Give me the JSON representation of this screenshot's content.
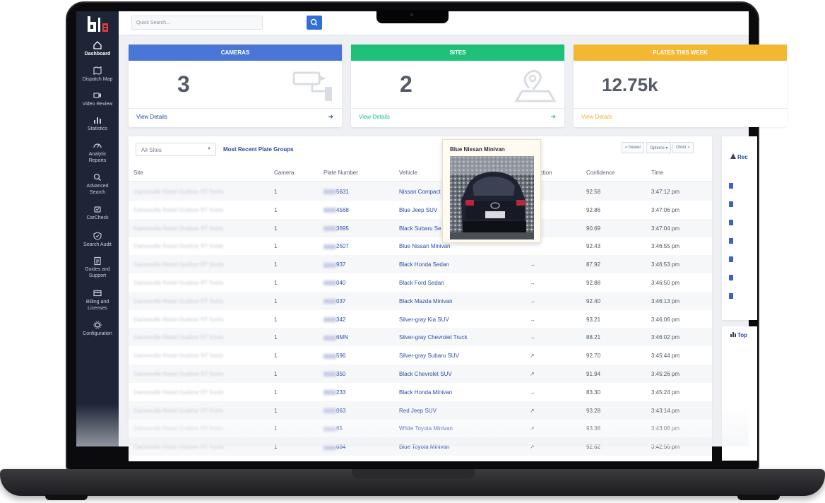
{
  "search": {
    "placeholder": "Quick Search..."
  },
  "sidebar": {
    "items": [
      {
        "label": "Dashboard",
        "icon": "home-icon"
      },
      {
        "label": "Dispatch Map",
        "icon": "map-icon"
      },
      {
        "label": "Video Review",
        "icon": "video-icon"
      },
      {
        "label": "Statistics",
        "icon": "bar-chart-icon"
      },
      {
        "label": "Analytic Reports",
        "icon": "gauge-icon"
      },
      {
        "label": "Advanced Search",
        "icon": "search-icon"
      },
      {
        "label": "CarCheck",
        "icon": "car-check-icon"
      },
      {
        "label": "Search Audit",
        "icon": "shield-check-icon"
      },
      {
        "label": "Guides and Support",
        "icon": "clipboard-icon"
      },
      {
        "label": "Billing and Licenses",
        "icon": "card-icon"
      },
      {
        "label": "Configuration",
        "icon": "gear-icon"
      }
    ]
  },
  "cards": [
    {
      "title": "CAMERAS",
      "value": "3",
      "link": "View Details",
      "color": "#4a76d8"
    },
    {
      "title": "SITES",
      "value": "2",
      "link": "View Details",
      "color": "#1fc07a"
    },
    {
      "title": "PLATES THIS WEEK",
      "value": "12.75k",
      "link": "View Details",
      "color": "#f4b731"
    }
  ],
  "table": {
    "filter": "All Sites",
    "group_link": "Most Recent Plate Groups",
    "pager": {
      "newer": "« Newer",
      "options": "Options ▾",
      "older": "Older »"
    },
    "headers": [
      "Site",
      "Camera",
      "Plate Number",
      "Vehicle",
      "Direction",
      "Confidence",
      "Time"
    ],
    "rows": [
      {
        "site": "Gainesville Retail Outdoor RT fronts",
        "camera": "1",
        "plate": "5631",
        "vehicle": "Nissan Compact",
        "dir": "",
        "confidence": "92.58",
        "time": "3:47:12 pm"
      },
      {
        "site": "Gainesville Retail Outdoor RT fronts",
        "camera": "1",
        "plate": "4568",
        "vehicle": "Blue Jeep SUV",
        "dir": "",
        "confidence": "92.86",
        "time": "3:47:06 pm"
      },
      {
        "site": "Gainesville Retail Outdoor RT fronts",
        "camera": "1",
        "plate": "3695",
        "vehicle": "Black Subaru Se",
        "dir": "",
        "confidence": "90.69",
        "time": "3:47:04 pm"
      },
      {
        "site": "Gainesville Retail Outdoor RT fronts",
        "camera": "1",
        "plate": "2507",
        "vehicle": "Blue Nissan Minivan",
        "dir": "",
        "confidence": "92.43",
        "time": "3:46:55 pm"
      },
      {
        "site": "Gainesville Retail Outdoor RT fronts",
        "camera": "1",
        "plate": "937",
        "vehicle": "Black Honda Sedan",
        "dir": "→",
        "confidence": "87.92",
        "time": "3:46:53 pm"
      },
      {
        "site": "Gainesville Retail Outdoor RT fronts",
        "camera": "1",
        "plate": "040",
        "vehicle": "Black Ford Sedan",
        "dir": "→",
        "confidence": "92.88",
        "time": "3:46:50 pm"
      },
      {
        "site": "Gainesville Retail Outdoor RT fronts",
        "camera": "1",
        "plate": "037",
        "vehicle": "Black Mazda Minivan",
        "dir": "→",
        "confidence": "92.40",
        "time": "3:46:13 pm"
      },
      {
        "site": "Gainesville Retail Outdoor RT fronts",
        "camera": "1",
        "plate": "342",
        "vehicle": "Silver-gray Kia SUV",
        "dir": "→",
        "confidence": "93.21",
        "time": "3:46:06 pm"
      },
      {
        "site": "Gainesville Retail Outdoor RT fronts",
        "camera": "1",
        "plate": "6MN",
        "vehicle": "Silver-gray Chevrolet Truck",
        "dir": "→",
        "confidence": "88.21",
        "time": "3:46:02 pm"
      },
      {
        "site": "Gainesville Retail Outdoor RT fronts",
        "camera": "1",
        "plate": "596",
        "vehicle": "Silver-gray Subaru SUV",
        "dir": "↗",
        "confidence": "92.70",
        "time": "3:45:44 pm"
      },
      {
        "site": "Gainesville Retail Outdoor RT fronts",
        "camera": "1",
        "plate": "350",
        "vehicle": "Black Chevrolet SUV",
        "dir": "↗",
        "confidence": "91.94",
        "time": "3:45:26 pm"
      },
      {
        "site": "Gainesville Retail Outdoor RT fronts",
        "camera": "1",
        "plate": "233",
        "vehicle": "Black Honda Minivan",
        "dir": "→",
        "confidence": "83.30",
        "time": "3:45:24 pm"
      },
      {
        "site": "Gainesville Retail Outdoor RT fronts",
        "camera": "1",
        "plate": "063",
        "vehicle": "Red Jeep SUV",
        "dir": "↗",
        "confidence": "93.28",
        "time": "3:43:14 pm"
      },
      {
        "site": "Gainesville Retail Outdoor RT fronts",
        "camera": "1",
        "plate": "65",
        "vehicle": "White Toyota Minivan",
        "dir": "↗",
        "confidence": "93.38",
        "time": "3:43:06 pm"
      },
      {
        "site": "Gainesville Retail Outdoor RT fronts",
        "camera": "1",
        "plate": "684",
        "vehicle": "Blue Toyota Minivan",
        "dir": "↗",
        "confidence": "92.62",
        "time": "3:42:56 pm"
      }
    ]
  },
  "popup": {
    "title": "Blue Nissan Minivan"
  },
  "right_panel": {
    "title1": "Rec",
    "title2": "Top"
  }
}
